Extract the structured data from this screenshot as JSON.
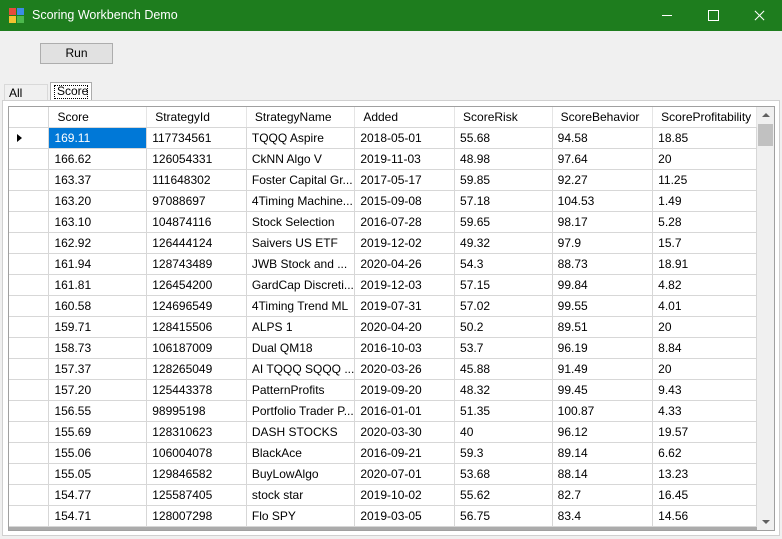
{
  "window": {
    "title": "Scoring Workbench Demo"
  },
  "toolbar": {
    "run_label": "Run"
  },
  "tabs": [
    {
      "label": "All data",
      "selected": false
    },
    {
      "label": "Score",
      "selected": true
    }
  ],
  "grid": {
    "columns": [
      "Score",
      "StrategyId",
      "StrategyName",
      "Added",
      "ScoreRisk",
      "ScoreBehavior",
      "ScoreProfitability"
    ],
    "rows": [
      [
        "169.11",
        "117734561",
        "TQQQ Aspire",
        "2018-05-01",
        "55.68",
        "94.58",
        "18.85"
      ],
      [
        "166.62",
        "126054331",
        "CkNN Algo V",
        "2019-11-03",
        "48.98",
        "97.64",
        "20"
      ],
      [
        "163.37",
        "111648302",
        "Foster Capital Gr...",
        "2017-05-17",
        "59.85",
        "92.27",
        "11.25"
      ],
      [
        "163.20",
        "97088697",
        "4Timing Machine...",
        "2015-09-08",
        "57.18",
        "104.53",
        "1.49"
      ],
      [
        "163.10",
        "104874116",
        "Stock Selection",
        "2016-07-28",
        "59.65",
        "98.17",
        "5.28"
      ],
      [
        "162.92",
        "126444124",
        "Saivers US ETF",
        "2019-12-02",
        "49.32",
        "97.9",
        "15.7"
      ],
      [
        "161.94",
        "128743489",
        "JWB Stock and ...",
        "2020-04-26",
        "54.3",
        "88.73",
        "18.91"
      ],
      [
        "161.81",
        "126454200",
        "GardCap Discreti...",
        "2019-12-03",
        "57.15",
        "99.84",
        "4.82"
      ],
      [
        "160.58",
        "124696549",
        "4Timing Trend ML",
        "2019-07-31",
        "57.02",
        "99.55",
        "4.01"
      ],
      [
        "159.71",
        "128415506",
        "ALPS 1",
        "2020-04-20",
        "50.2",
        "89.51",
        "20"
      ],
      [
        "158.73",
        "106187009",
        "Dual QM18",
        "2016-10-03",
        "53.7",
        "96.19",
        "8.84"
      ],
      [
        "157.37",
        "128265049",
        "AI TQQQ SQQQ ...",
        "2020-03-26",
        "45.88",
        "91.49",
        "20"
      ],
      [
        "157.20",
        "125443378",
        "PatternProfits",
        "2019-09-20",
        "48.32",
        "99.45",
        "9.43"
      ],
      [
        "156.55",
        "98995198",
        "Portfolio Trader P...",
        "2016-01-01",
        "51.35",
        "100.87",
        "4.33"
      ],
      [
        "155.69",
        "128310623",
        "DASH STOCKS",
        "2020-03-30",
        "40",
        "96.12",
        "19.57"
      ],
      [
        "155.06",
        "106004078",
        "BlackAce",
        "2016-09-21",
        "59.3",
        "89.14",
        "6.62"
      ],
      [
        "155.05",
        "129846582",
        "BuyLowAlgo",
        "2020-07-01",
        "53.68",
        "88.14",
        "13.23"
      ],
      [
        "154.77",
        "125587405",
        "stock   star",
        "2019-10-02",
        "55.62",
        "82.7",
        "16.45"
      ],
      [
        "154.71",
        "128007298",
        "Flo SPY",
        "2019-03-05",
        "56.75",
        "83.4",
        "14.56"
      ]
    ]
  }
}
